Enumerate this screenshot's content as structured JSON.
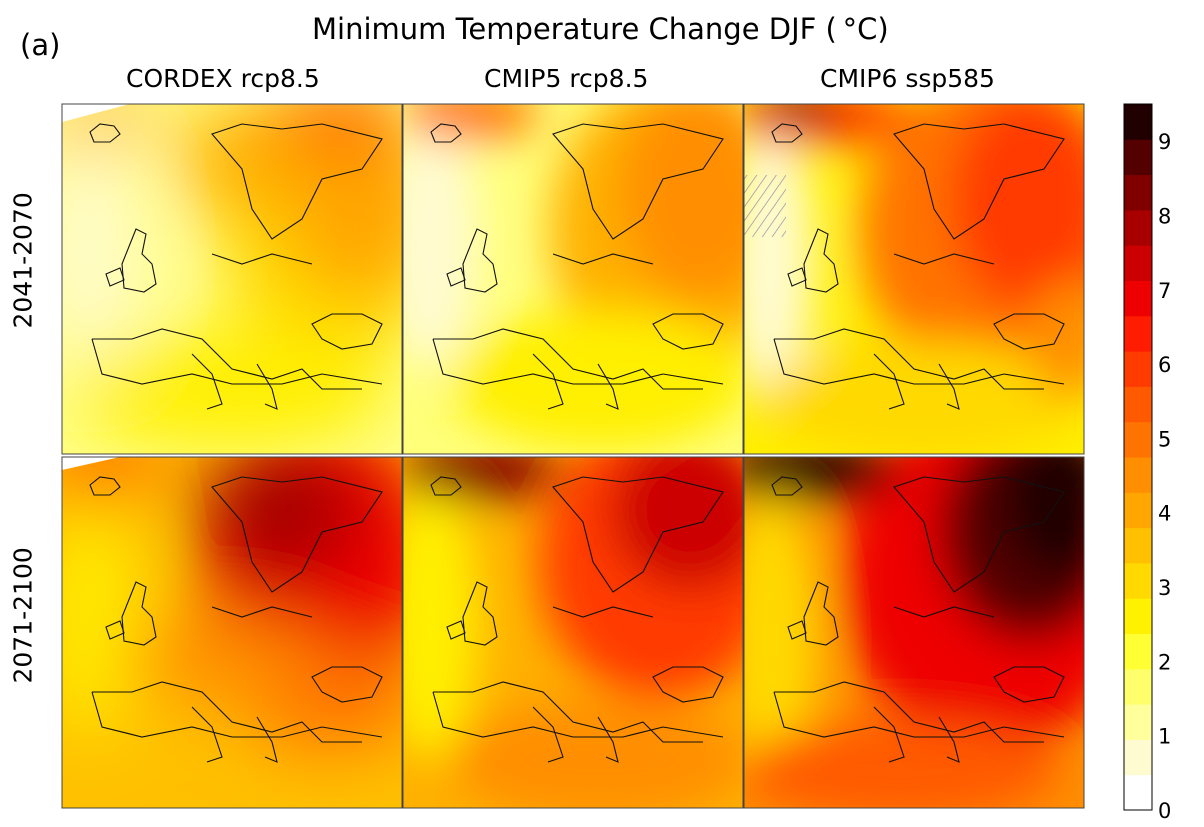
{
  "panel_label": "(a)",
  "title": "Minimum Temperature Change DJF ( °C)",
  "columns": [
    "CORDEX rcp8.5",
    "CMIP5 rcp8.5",
    "CMIP6 ssp585"
  ],
  "rows": [
    "2041-2070",
    "2071-2100"
  ],
  "colorbar": {
    "min": 0,
    "max": 9.5,
    "step": 0.5,
    "tick_labels": [
      "0",
      "1",
      "2",
      "3",
      "4",
      "5",
      "6",
      "7",
      "8",
      "9"
    ],
    "colors": [
      "#ffffff",
      "#fffbd0",
      "#ffff9c",
      "#ffff6b",
      "#ffff33",
      "#fff100",
      "#ffd900",
      "#ffc000",
      "#ffa600",
      "#ff8f00",
      "#ff7300",
      "#ff5a00",
      "#ff3b00",
      "#ff1c00",
      "#ee0000",
      "#cc0000",
      "#a80000",
      "#800000",
      "#550000",
      "#200000"
    ]
  },
  "map_info": {
    "region": "Europe and Mediterranean",
    "variable": "minimum temperature change, DJF",
    "hatching_panel": "CMIP6 ssp585, 2041-2070, North Atlantic"
  }
}
